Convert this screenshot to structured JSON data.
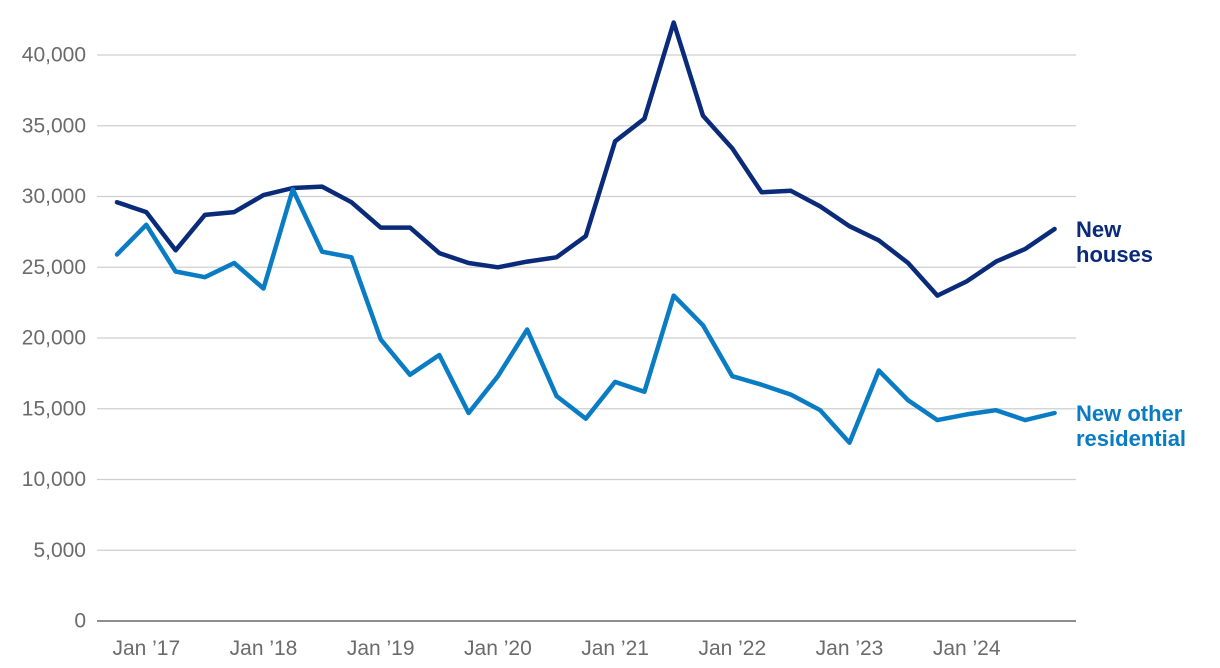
{
  "chart_data": {
    "type": "line",
    "title": "",
    "xlabel": "",
    "ylabel": "",
    "ylim": [
      0,
      42000
    ],
    "y_ticks": [
      0,
      5000,
      10000,
      15000,
      20000,
      25000,
      30000,
      35000,
      40000
    ],
    "y_tick_labels": [
      "0",
      "5,000",
      "10,000",
      "15,000",
      "20,000",
      "25,000",
      "30,000",
      "35,000",
      "40,000"
    ],
    "x_tick_labels": [
      "Jan ’17",
      "Jan ’18",
      "Jan ’19",
      "Jan ’20",
      "Jan ’21",
      "Jan ’22",
      "Jan ’23",
      "Jan ’24"
    ],
    "x_tick_index": [
      1,
      5,
      9,
      13,
      17,
      21,
      25,
      29
    ],
    "grid": true,
    "legend": "direct labels at right end of lines",
    "series": [
      {
        "name": "New houses",
        "label_lines": [
          "New",
          "houses"
        ],
        "color": "#0a2a7a",
        "values": [
          29600,
          28900,
          26200,
          28700,
          28900,
          30100,
          30600,
          30700,
          29600,
          27800,
          27800,
          26000,
          25300,
          25000,
          25400,
          25700,
          27200,
          33900,
          35500,
          42300,
          35700,
          33400,
          30300,
          30400,
          29300,
          27900,
          26900,
          25300,
          23000,
          24000,
          25400,
          26300,
          27700
        ]
      },
      {
        "name": "New other residential",
        "label_lines": [
          "New other",
          "residential"
        ],
        "color": "#0a7cc4",
        "values": [
          25900,
          28000,
          24700,
          24300,
          25300,
          23500,
          30500,
          26100,
          25700,
          19900,
          17400,
          18800,
          14700,
          17300,
          20600,
          15900,
          14300,
          16900,
          16200,
          23000,
          20900,
          17300,
          16700,
          16000,
          14900,
          12600,
          17700,
          15600,
          14200,
          14600,
          14900,
          14200,
          14700
        ]
      }
    ]
  }
}
